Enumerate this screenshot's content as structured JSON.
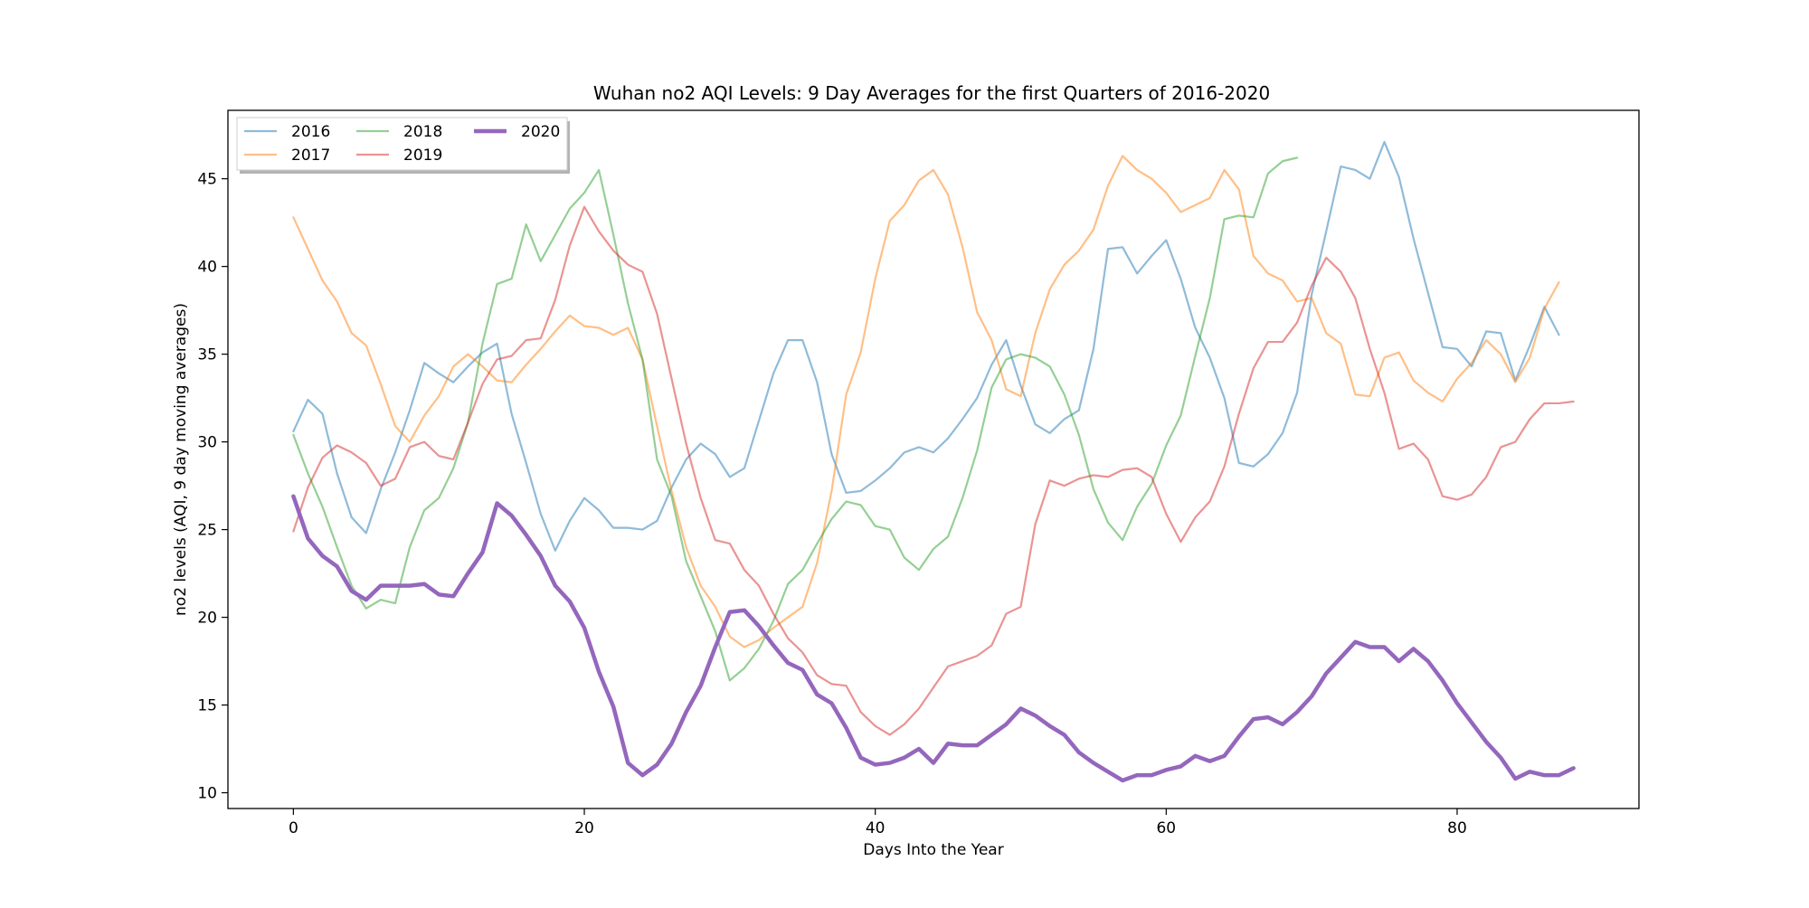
{
  "chart_data": {
    "type": "line",
    "title": "Wuhan no2 AQI Levels: 9 Day Averages for the first Quarters of 2016-2020",
    "xlabel": "Days Into the Year",
    "ylabel": "no2 levels (AQI, 9 day moving averages)",
    "xlim": [
      -4.5,
      92.5
    ],
    "ylim": [
      9.1,
      48.9
    ],
    "xticks": [
      0,
      20,
      40,
      60,
      80
    ],
    "yticks": [
      10,
      15,
      20,
      25,
      30,
      35,
      40,
      45
    ],
    "grid": false,
    "legend": {
      "placement": "top-left",
      "columns": 3,
      "shadow": true
    },
    "series": [
      {
        "name": "2016",
        "color": "#1f77b4",
        "emphasis": false,
        "values": [
          30.6,
          32.4,
          31.6,
          28.2,
          25.7,
          24.8,
          27.3,
          29.4,
          31.8,
          34.5,
          33.9,
          33.4,
          34.3,
          35.1,
          35.6,
          31.6,
          28.8,
          25.9,
          23.8,
          25.5,
          26.8,
          26.1,
          25.1,
          25.1,
          25.0,
          25.5,
          27.4,
          29.0,
          29.9,
          29.3,
          28.0,
          28.5,
          31.2,
          33.9,
          35.8,
          35.8,
          33.4,
          29.3,
          27.1,
          27.2,
          27.8,
          28.5,
          29.4,
          29.7,
          29.4,
          30.2,
          31.3,
          32.5,
          34.4,
          35.8,
          33.2,
          31.0,
          30.5,
          31.3,
          31.8,
          35.3,
          41.0,
          41.1,
          39.6,
          40.6,
          41.5,
          39.3,
          36.5,
          34.8,
          32.5,
          28.8,
          28.6,
          29.3,
          30.5,
          32.8,
          38.4,
          42.0,
          45.7,
          45.5,
          45.0,
          47.1,
          45.1,
          41.6,
          38.5,
          35.4,
          35.3,
          34.3,
          36.3,
          36.2,
          33.5,
          35.5,
          37.7,
          36.1
        ]
      },
      {
        "name": "2017",
        "color": "#ff7f0e",
        "emphasis": false,
        "values": [
          42.8,
          41.0,
          39.2,
          38.0,
          36.2,
          35.5,
          33.3,
          30.9,
          30.0,
          31.5,
          32.6,
          34.3,
          35.0,
          34.3,
          33.5,
          33.4,
          34.4,
          35.3,
          36.3,
          37.2,
          36.6,
          36.5,
          36.1,
          36.5,
          34.7,
          30.9,
          27.2,
          24.0,
          21.8,
          20.6,
          18.9,
          18.3,
          18.7,
          19.4,
          20.0,
          20.6,
          23.1,
          27.2,
          32.7,
          35.1,
          39.3,
          42.6,
          43.5,
          44.9,
          45.5,
          44.1,
          41.1,
          37.4,
          35.8,
          33.0,
          32.6,
          36.2,
          38.7,
          40.1,
          40.9,
          42.1,
          44.6,
          46.3,
          45.5,
          45.0,
          44.2,
          43.1,
          43.5,
          43.9,
          45.5,
          44.4,
          40.6,
          39.6,
          39.2,
          38.0,
          38.2,
          36.2,
          35.6,
          32.7,
          32.6,
          34.8,
          35.1,
          33.5,
          32.8,
          32.3,
          33.6,
          34.5,
          35.8,
          35.0,
          33.4,
          34.8,
          37.6,
          39.1
        ]
      },
      {
        "name": "2018",
        "color": "#2ca02c",
        "emphasis": false,
        "values": [
          30.4,
          28.2,
          26.3,
          24.0,
          21.8,
          20.5,
          21.0,
          20.8,
          24.0,
          26.1,
          26.8,
          28.5,
          31.1,
          35.6,
          39.0,
          39.3,
          42.4,
          40.3,
          41.8,
          43.3,
          44.2,
          45.5,
          41.8,
          37.9,
          34.7,
          29.0,
          26.9,
          23.2,
          21.2,
          19.2,
          16.4,
          17.1,
          18.2,
          19.8,
          21.9,
          22.7,
          24.2,
          25.6,
          26.6,
          26.4,
          25.2,
          25.0,
          23.4,
          22.7,
          23.9,
          24.6,
          26.8,
          29.5,
          33.1,
          34.7,
          35.0,
          34.8,
          34.3,
          32.7,
          30.4,
          27.3,
          25.4,
          24.4,
          26.3,
          27.6,
          29.8,
          31.5,
          34.9,
          38.2,
          42.7,
          42.9,
          42.8,
          45.3,
          46.0,
          46.2
        ]
      },
      {
        "name": "2019",
        "color": "#d62728",
        "emphasis": false,
        "values": [
          24.9,
          27.4,
          29.1,
          29.8,
          29.4,
          28.8,
          27.5,
          27.9,
          29.7,
          30.0,
          29.2,
          29.0,
          31.1,
          33.3,
          34.7,
          34.9,
          35.8,
          35.9,
          38.1,
          41.2,
          43.4,
          42.0,
          40.9,
          40.1,
          39.7,
          37.3,
          33.6,
          29.9,
          26.8,
          24.4,
          24.2,
          22.7,
          21.8,
          20.2,
          18.8,
          18.0,
          16.7,
          16.2,
          16.1,
          14.6,
          13.8,
          13.3,
          13.9,
          14.8,
          16.0,
          17.2,
          17.5,
          17.8,
          18.4,
          20.2,
          20.6,
          25.3,
          27.8,
          27.5,
          27.9,
          28.1,
          28.0,
          28.4,
          28.5,
          28.0,
          25.9,
          24.3,
          25.7,
          26.6,
          28.6,
          31.6,
          34.2,
          35.7,
          35.7,
          36.8,
          38.9,
          40.5,
          39.7,
          38.2,
          35.3,
          32.8,
          29.6,
          29.9,
          29.0,
          26.9,
          26.7,
          27.0,
          28.0,
          29.7,
          30.0,
          31.3,
          32.2,
          32.2,
          32.3
        ]
      },
      {
        "name": "2020",
        "color": "#9467bd",
        "emphasis": true,
        "values": [
          26.9,
          24.5,
          23.5,
          22.9,
          21.5,
          21.0,
          21.8,
          21.8,
          21.8,
          21.9,
          21.3,
          21.2,
          22.5,
          23.7,
          26.5,
          25.8,
          24.7,
          23.5,
          21.8,
          20.9,
          19.4,
          16.9,
          14.9,
          11.7,
          11.0,
          11.6,
          12.8,
          14.6,
          16.1,
          18.3,
          20.3,
          20.4,
          19.5,
          18.4,
          17.4,
          17.0,
          15.6,
          15.1,
          13.7,
          12.0,
          11.6,
          11.7,
          12.0,
          12.5,
          11.7,
          12.8,
          12.7,
          12.7,
          13.3,
          13.9,
          14.8,
          14.4,
          13.8,
          13.3,
          12.3,
          11.7,
          11.2,
          10.7,
          11.0,
          11.0,
          11.3,
          11.5,
          12.1,
          11.8,
          12.1,
          13.2,
          14.2,
          14.3,
          13.9,
          14.6,
          15.5,
          16.8,
          17.7,
          18.6,
          18.3,
          18.3,
          17.5,
          18.2,
          17.5,
          16.4,
          15.1,
          14.0,
          12.9,
          12.0,
          10.8,
          11.2,
          11.0,
          11.0,
          11.4
        ]
      }
    ]
  }
}
